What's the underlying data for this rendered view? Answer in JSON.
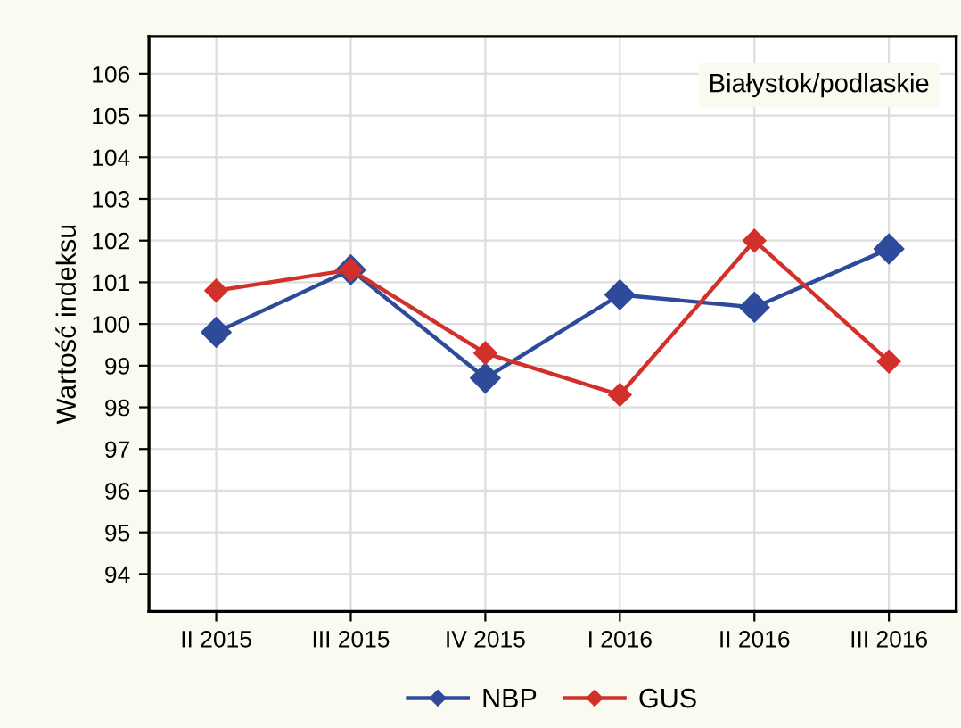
{
  "chart_data": {
    "type": "line",
    "ylabel": "Wartość indeksu",
    "annotations": [
      "Białystok/podlaskie"
    ],
    "categories": [
      "II 2015",
      "III 2015",
      "IV 2015",
      "I 2016",
      "II 2016",
      "III 2016"
    ],
    "series": [
      {
        "name": "NBP",
        "color": "#2e4b9b",
        "values": [
          99.8,
          101.3,
          98.7,
          100.7,
          100.4,
          101.8
        ]
      },
      {
        "name": "GUS",
        "color": "#d2302a",
        "values": [
          100.8,
          101.3,
          99.3,
          98.3,
          102.0,
          99.1
        ]
      }
    ],
    "ylim": [
      93.1,
      106.9
    ],
    "yticks": [
      94,
      95,
      96,
      97,
      98,
      99,
      100,
      101,
      102,
      103,
      104,
      105,
      106
    ],
    "grid": true,
    "legend": "bottom",
    "marker": "diamond",
    "line_style": "solid"
  }
}
